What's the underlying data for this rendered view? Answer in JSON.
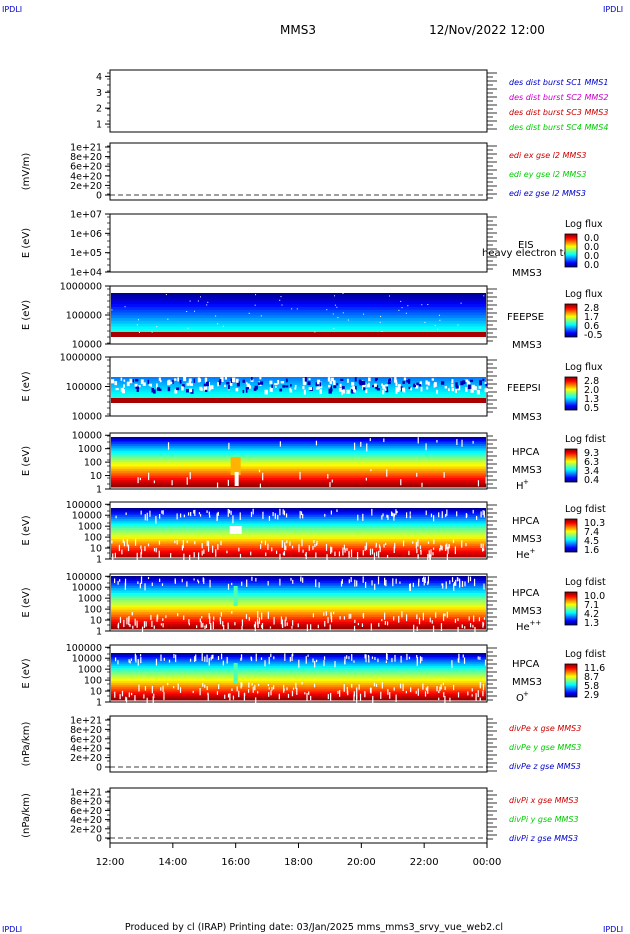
{
  "corner_label": "IPDLI",
  "header": {
    "spacecraft": "MMS3",
    "datetime": "12/Nov/2022 12:00"
  },
  "footer": "Produced by cl (IRAP)   Printing date: 03/Jan/2025   mms_mms3_srvy_vue_web2.cl",
  "time_axis": {
    "ticks": [
      "12:00",
      "14:00",
      "16:00",
      "18:00",
      "20:00",
      "22:00",
      "00:00"
    ]
  },
  "colors": {
    "red": "#cc0000",
    "green": "#00cc00",
    "blue": "#0000cc",
    "magenta": "#cc00cc"
  },
  "chart_data": [
    {
      "type": "line",
      "id": "des",
      "yticks": [
        "1",
        "2",
        "3",
        "4"
      ],
      "ylabel": "",
      "legend": [
        {
          "text": "des dist burst SC1 MMS1",
          "color": "#0000cc"
        },
        {
          "text": "des dist burst SC2 MMS2",
          "color": "#cc00cc"
        },
        {
          "text": "des dist burst SC3 MMS3",
          "color": "#cc0000"
        },
        {
          "text": "des dist burst SC4 MMS4",
          "color": "#00cc00"
        }
      ]
    },
    {
      "type": "line",
      "id": "edi",
      "yticks": [
        "0",
        "2e+20",
        "4e+20",
        "6e+20",
        "8e+20",
        "1e+21"
      ],
      "ylabel": "(mV/m)",
      "legend": [
        {
          "text": "edi ex gse l2 MMS3",
          "color": "#cc0000"
        },
        {
          "text": "edi ey gse l2 MMS3",
          "color": "#00cc00"
        },
        {
          "text": "edi ez gse l2 MMS3",
          "color": "#0000cc"
        }
      ]
    },
    {
      "type": "heatmap",
      "id": "eis",
      "yticks": [
        "1e+04",
        "1e+05",
        "1e+06",
        "1e+07"
      ],
      "ylabel": "E (eV)",
      "instrument": "EIS",
      "spacecraft": "MMS3",
      "extra": "heavy electron to",
      "scale_title": "Log flux",
      "scale": [
        "0.0",
        "0.0",
        "0.0",
        "0.0"
      ]
    },
    {
      "type": "heatmap",
      "id": "feepse",
      "yticks": [
        "10000",
        "100000",
        "1000000"
      ],
      "ylabel": "E (eV)",
      "instrument": "FEEPSE",
      "spacecraft": "MMS3",
      "scale_title": "Log flux",
      "scale": [
        "2.8",
        "1.7",
        "0.6",
        "-0.5"
      ]
    },
    {
      "type": "heatmap",
      "id": "feepsi",
      "yticks": [
        "10000",
        "100000",
        "1000000"
      ],
      "ylabel": "E (eV)",
      "instrument": "FEEPSI",
      "spacecraft": "MMS3",
      "scale_title": "Log flux",
      "scale": [
        "2.8",
        "2.0",
        "1.3",
        "0.5"
      ]
    },
    {
      "type": "heatmap",
      "id": "hpca_h",
      "yticks": [
        "1",
        "10",
        "100",
        "1000",
        "10000"
      ],
      "ylabel": "E (eV)",
      "instrument": "HPCA",
      "spacecraft": "MMS3",
      "species": "H",
      "charge": "+",
      "scale_title": "Log fdist",
      "scale": [
        "9.3",
        "6.3",
        "3.4",
        "0.4"
      ]
    },
    {
      "type": "heatmap",
      "id": "hpca_he",
      "yticks": [
        "1",
        "10",
        "100",
        "1000",
        "10000",
        "100000"
      ],
      "ylabel": "E (eV)",
      "instrument": "HPCA",
      "spacecraft": "MMS3",
      "species": "He",
      "charge": "+",
      "scale_title": "Log fdist",
      "scale": [
        "10.3",
        "7.4",
        "4.5",
        "1.6"
      ]
    },
    {
      "type": "heatmap",
      "id": "hpca_he2",
      "yticks": [
        "1",
        "10",
        "100",
        "1000",
        "10000",
        "100000"
      ],
      "ylabel": "E (eV)",
      "instrument": "HPCA",
      "spacecraft": "MMS3",
      "species": "He",
      "charge": "++",
      "scale_title": "Log fdist",
      "scale": [
        "10.0",
        "7.1",
        "4.2",
        "1.3"
      ]
    },
    {
      "type": "heatmap",
      "id": "hpca_o",
      "yticks": [
        "1",
        "10",
        "100",
        "1000",
        "10000",
        "100000"
      ],
      "ylabel": "E (eV)",
      "instrument": "HPCA",
      "spacecraft": "MMS3",
      "species": "O",
      "charge": "+",
      "scale_title": "Log fdist",
      "scale": [
        "11.6",
        "8.7",
        "5.8",
        "2.9"
      ]
    },
    {
      "type": "line",
      "id": "divpe",
      "yticks": [
        "0",
        "2e+20",
        "4e+20",
        "6e+20",
        "8e+20",
        "1e+21"
      ],
      "ylabel": "(nPa/km)",
      "legend": [
        {
          "text": "divPe x gse MMS3",
          "color": "#cc0000"
        },
        {
          "text": "divPe y gse MMS3",
          "color": "#00cc00"
        },
        {
          "text": "divPe z gse MMS3",
          "color": "#0000cc"
        }
      ]
    },
    {
      "type": "line",
      "id": "divpi",
      "yticks": [
        "0",
        "2e+20",
        "4e+20",
        "6e+20",
        "8e+20",
        "1e+21"
      ],
      "ylabel": "(nPa/km)",
      "legend": [
        {
          "text": "divPi x gse MMS3",
          "color": "#cc0000"
        },
        {
          "text": "divPi y gse MMS3",
          "color": "#00cc00"
        },
        {
          "text": "divPi z gse MMS3",
          "color": "#0000cc"
        }
      ]
    }
  ]
}
